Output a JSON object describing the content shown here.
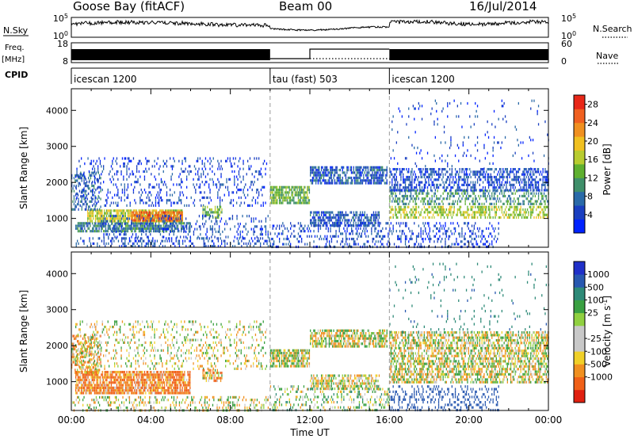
{
  "header": {
    "station": "Goose Bay (fitACF)",
    "beam": "Beam 00",
    "date": "16/Jul/2014"
  },
  "params": {
    "nsky_label": "N.Sky",
    "nsky_top": "10^5",
    "nsky_bottom": "10^0",
    "nsearch_label": "N.Search",
    "nsearch_top": "10^5",
    "nsearch_bottom": "10^0",
    "freq_label": "Freq.",
    "freq_unit": "[MHz]",
    "freq_top": "18",
    "freq_bottom": "8",
    "nave_label": "Nave",
    "nave_top": "60",
    "nave_bottom": "0",
    "cpid_label": "CPID",
    "cpid_segments": [
      {
        "label": "icescan 1200",
        "start": 0,
        "end": 10
      },
      {
        "label": "tau (fast) 503",
        "start": 10,
        "end": 16
      },
      {
        "label": "icescan 1200",
        "start": 16,
        "end": 24
      }
    ]
  },
  "x_axis": {
    "label": "Time UT",
    "ticks": [
      "00:00",
      "04:00",
      "08:00",
      "12:00",
      "16:00",
      "20:00",
      "00:00"
    ],
    "tick_hours": [
      0,
      4,
      8,
      12,
      16,
      20,
      24
    ]
  },
  "mode_change_hours": [
    10,
    16
  ],
  "colors": {
    "power": [
      "#0022ff",
      "#1a3fc0",
      "#2a6aa8",
      "#3f8f6a",
      "#5fb030",
      "#b8cc30",
      "#f0c020",
      "#f09020",
      "#f06020",
      "#e82818"
    ],
    "velocity": [
      "#2030c8",
      "#2858b0",
      "#2e8a78",
      "#3aa042",
      "#90d040",
      "#c8c8c8",
      "#c8c8c8",
      "#f0d028",
      "#f09020",
      "#f06018",
      "#e02010"
    ]
  },
  "chart_data": [
    {
      "type": "heatmap",
      "panel": "power",
      "ylabel": "Slant Range [km]",
      "yticks": [
        1000,
        2000,
        3000,
        4000
      ],
      "ylim": [
        200,
        4600
      ],
      "xlim": [
        0,
        24
      ],
      "colorbar_label": "Power [dB]",
      "colorbar_ticks": [
        "4",
        "8",
        "12",
        "16",
        "20",
        "24",
        "28"
      ],
      "colorbar_range": [
        0,
        30
      ],
      "regions": [
        {
          "t0": 0.0,
          "t1": 10.0,
          "r0": 200,
          "r1": 480,
          "value": 5,
          "density": 0.3
        },
        {
          "t0": 0.2,
          "t1": 6.0,
          "r0": 650,
          "r1": 900,
          "value": 9,
          "density": 0.75
        },
        {
          "t0": 0.8,
          "t1": 5.6,
          "r0": 900,
          "r1": 1250,
          "value": 17,
          "density": 0.8
        },
        {
          "t0": 3.0,
          "t1": 5.6,
          "r0": 950,
          "r1": 1200,
          "value": 25,
          "density": 0.8
        },
        {
          "t0": 0.0,
          "t1": 1.5,
          "r0": 1250,
          "r1": 2300,
          "value": 7,
          "density": 0.4
        },
        {
          "t0": 0.2,
          "t1": 9.8,
          "r0": 1350,
          "r1": 2700,
          "value": 4,
          "density": 0.18
        },
        {
          "t0": 6.6,
          "t1": 7.6,
          "r0": 1050,
          "r1": 1350,
          "value": 14,
          "density": 0.6
        },
        {
          "t0": 1.5,
          "t1": 9.9,
          "r0": 500,
          "r1": 1100,
          "value": 5,
          "density": 0.2
        },
        {
          "t0": 10.0,
          "t1": 12.0,
          "r0": 1450,
          "r1": 1900,
          "value": 13,
          "density": 0.8
        },
        {
          "t0": 12.0,
          "t1": 15.9,
          "r0": 2000,
          "r1": 2450,
          "value": 6,
          "density": 0.7
        },
        {
          "t0": 12.0,
          "t1": 15.5,
          "r0": 800,
          "r1": 1200,
          "value": 6,
          "density": 0.65
        },
        {
          "t0": 10.0,
          "t1": 16.0,
          "r0": 200,
          "r1": 900,
          "value": 5,
          "density": 0.25
        },
        {
          "t0": 16.0,
          "t1": 24.0,
          "r0": 1000,
          "r1": 1350,
          "value": 16,
          "density": 0.5
        },
        {
          "t0": 16.0,
          "t1": 24.0,
          "r0": 1400,
          "r1": 1800,
          "value": 10,
          "density": 0.45
        },
        {
          "t0": 16.0,
          "t1": 24.0,
          "r0": 1800,
          "r1": 2400,
          "value": 5,
          "density": 0.5
        },
        {
          "t0": 16.0,
          "t1": 21.5,
          "r0": 200,
          "r1": 900,
          "value": 4,
          "density": 0.25
        },
        {
          "t0": 16.0,
          "t1": 24.0,
          "r0": 2400,
          "r1": 4300,
          "value": 4,
          "density": 0.04
        }
      ]
    },
    {
      "type": "heatmap",
      "panel": "velocity",
      "ylabel": "Slant Range [km]",
      "yticks": [
        1000,
        2000,
        3000,
        4000
      ],
      "ylim": [
        200,
        4600
      ],
      "xlim": [
        0,
        24
      ],
      "colorbar_label": "Velocity [m s^-1]",
      "colorbar_ticks": [
        "1000",
        "500",
        "100",
        "25",
        "-25",
        "-100",
        "-500",
        "-1000"
      ],
      "regions": [
        {
          "t0": 0.2,
          "t1": 6.0,
          "r0": 650,
          "r1": 1300,
          "value": -150,
          "density": 0.8
        },
        {
          "t0": 0.0,
          "t1": 1.5,
          "r0": 1250,
          "r1": 2300,
          "value": -80,
          "density": 0.45
        },
        {
          "t0": 0.0,
          "t1": 10.0,
          "r0": 200,
          "r1": 600,
          "value": 0,
          "density": 0.3
        },
        {
          "t0": 0.2,
          "t1": 9.8,
          "r0": 1350,
          "r1": 2700,
          "value": 0,
          "density": 0.2
        },
        {
          "t0": 6.6,
          "t1": 7.6,
          "r0": 1050,
          "r1": 1350,
          "value": -60,
          "density": 0.6
        },
        {
          "t0": 10.0,
          "t1": 12.0,
          "r0": 1450,
          "r1": 1900,
          "value": 0,
          "density": 0.8
        },
        {
          "t0": 12.0,
          "t1": 15.9,
          "r0": 2000,
          "r1": 2450,
          "value": 0,
          "density": 0.7
        },
        {
          "t0": 12.0,
          "t1": 15.5,
          "r0": 800,
          "r1": 1200,
          "value": 0,
          "density": 0.6
        },
        {
          "t0": 10.0,
          "t1": 16.0,
          "r0": 200,
          "r1": 900,
          "value": 60,
          "density": 0.25
        },
        {
          "t0": 16.0,
          "t1": 24.0,
          "r0": 1000,
          "r1": 2400,
          "value": 0,
          "density": 0.6
        },
        {
          "t0": 16.0,
          "t1": 21.5,
          "r0": 200,
          "r1": 900,
          "value": 600,
          "density": 0.25
        },
        {
          "t0": 16.0,
          "t1": 24.0,
          "r0": 2400,
          "r1": 4300,
          "value": 300,
          "density": 0.04
        }
      ]
    }
  ]
}
